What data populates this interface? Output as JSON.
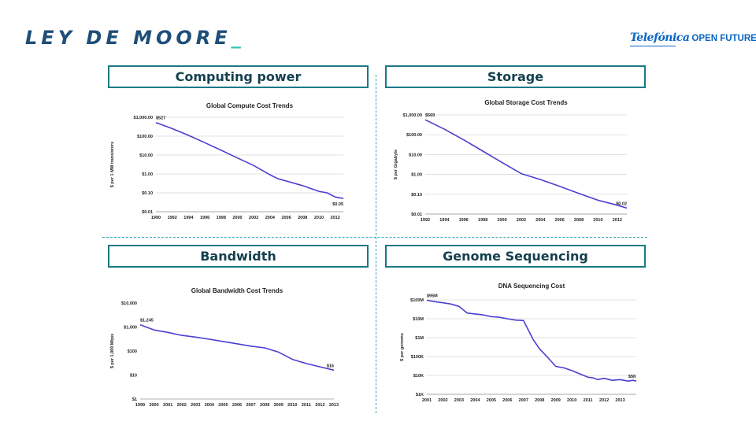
{
  "slide": {
    "title": "LEY DE MOORE",
    "title_cursor": "_",
    "logo_brand": "Telefónica",
    "logo_suffix": "OPEN FUTURE"
  },
  "sections": {
    "computing": "Computing power",
    "storage": "Storage",
    "bandwidth": "Bandwidth",
    "genome": "Genome Sequencing"
  },
  "colors": {
    "line": "#4b3fd0",
    "frame": "#197a85",
    "title": "#1f4e79",
    "accent": "#2ec4b6"
  },
  "chart_data": [
    {
      "id": "compute",
      "type": "line",
      "title": "Global Compute Cost Trends",
      "ylabel": "$ per 1 MM transistors",
      "yscale": "log",
      "xlim": [
        1990,
        2013
      ],
      "ylim": [
        0.01,
        1000
      ],
      "grid": true,
      "xticks": [
        "1990",
        "1992",
        "1994",
        "1996",
        "1998",
        "2000",
        "2002",
        "2004",
        "2006",
        "2008",
        "2010",
        "2012"
      ],
      "yticks": [
        {
          "value": 1000,
          "label": "$1,000.00"
        },
        {
          "value": 100,
          "label": "$100.00"
        },
        {
          "value": 10,
          "label": "$10.00"
        },
        {
          "value": 1,
          "label": "$1.00"
        },
        {
          "value": 0.1,
          "label": "$0.10"
        },
        {
          "value": 0.01,
          "label": "$0.01"
        }
      ],
      "series": [
        {
          "x": [
            1990,
            1992,
            1994,
            1996,
            1998,
            2000,
            2002,
            2004,
            2005,
            2006,
            2008,
            2010,
            2011,
            2012,
            2013
          ],
          "y": [
            527,
            250,
            110,
            45,
            18,
            7,
            2.8,
            0.9,
            0.55,
            0.42,
            0.24,
            0.12,
            0.1,
            0.06,
            0.05
          ]
        }
      ],
      "annotations": [
        {
          "text": "$527",
          "x": 1990,
          "y": 527,
          "pos": "above"
        },
        {
          "text": "$0.05",
          "x": 2013,
          "y": 0.05,
          "pos": "below"
        }
      ]
    },
    {
      "id": "storage",
      "type": "line",
      "title": "Global Storage Cost Trends",
      "ylabel": "$ per Gigabyte",
      "yscale": "log",
      "xlim": [
        1992,
        2013
      ],
      "ylim": [
        0.01,
        1000
      ],
      "grid": true,
      "xticks": [
        "1992",
        "1994",
        "1996",
        "1998",
        "2000",
        "2002",
        "2004",
        "2006",
        "2008",
        "2010",
        "2012"
      ],
      "yticks": [
        {
          "value": 1000,
          "label": "$1,000.00"
        },
        {
          "value": 100,
          "label": "$100.00"
        },
        {
          "value": 10,
          "label": "$10.00"
        },
        {
          "value": 1,
          "label": "$1.00"
        },
        {
          "value": 0.1,
          "label": "$0.10"
        },
        {
          "value": 0.01,
          "label": "$0.01"
        }
      ],
      "series": [
        {
          "x": [
            1992,
            1994,
            1996,
            1998,
            2000,
            2002,
            2004,
            2006,
            2008,
            2010,
            2012,
            2013
          ],
          "y": [
            569,
            190,
            55,
            15,
            4,
            1.1,
            0.55,
            0.25,
            0.11,
            0.05,
            0.028,
            0.02
          ]
        }
      ],
      "annotations": [
        {
          "text": "$569",
          "x": 1992,
          "y": 569,
          "pos": "above"
        },
        {
          "text": "$0.02",
          "x": 2013,
          "y": 0.02,
          "pos": "above"
        }
      ]
    },
    {
      "id": "bandwidth",
      "type": "line",
      "title": "Global Bandwidth Cost Trends",
      "ylabel": "$ per 1,000 Mbps",
      "yscale": "log",
      "xlim": [
        1999,
        2013
      ],
      "ylim": [
        1,
        10000
      ],
      "grid": false,
      "xticks": [
        "1999",
        "2000",
        "2001",
        "2002",
        "2003",
        "2004",
        "2005",
        "2006",
        "2007",
        "2008",
        "2009",
        "2010",
        "2011",
        "2012",
        "2013"
      ],
      "yticks": [
        {
          "value": 10000,
          "label": "$10,000"
        },
        {
          "value": 1000,
          "label": "$1,000"
        },
        {
          "value": 100,
          "label": "$100"
        },
        {
          "value": 10,
          "label": "$10"
        },
        {
          "value": 1,
          "label": "$1"
        }
      ],
      "series": [
        {
          "x": [
            1999,
            2000,
            2001,
            2002,
            2003,
            2004,
            2005,
            2006,
            2007,
            2008,
            2009,
            2010,
            2011,
            2012,
            2013
          ],
          "y": [
            1245,
            750,
            600,
            450,
            380,
            310,
            250,
            200,
            160,
            135,
            90,
            45,
            30,
            22,
            16
          ]
        }
      ],
      "annotations": [
        {
          "text": "$1,245",
          "x": 1999,
          "y": 1245,
          "pos": "above"
        },
        {
          "text": "$16",
          "x": 2013,
          "y": 16,
          "pos": "above"
        }
      ]
    },
    {
      "id": "genome",
      "type": "line",
      "title": "DNA Sequencing Cost",
      "ylabel": "$ per genome",
      "yscale": "log",
      "xlim": [
        2001,
        2014
      ],
      "ylim": [
        1000,
        100000000
      ],
      "grid": true,
      "xticks": [
        "2001",
        "2002",
        "2003",
        "2004",
        "2005",
        "2006",
        "2007",
        "2008",
        "2009",
        "2010",
        "2011",
        "2012",
        "2013"
      ],
      "yticks": [
        {
          "value": 100000000,
          "label": "$100M"
        },
        {
          "value": 10000000,
          "label": "$10M"
        },
        {
          "value": 1000000,
          "label": "$1M"
        },
        {
          "value": 100000,
          "label": "$100K"
        },
        {
          "value": 10000,
          "label": "$10K"
        },
        {
          "value": 1000,
          "label": "$1K"
        }
      ],
      "series": [
        {
          "x": [
            2001,
            2001.5,
            2002,
            2002.5,
            2003,
            2003.5,
            2004,
            2004.5,
            2005,
            2005.5,
            2006,
            2006.5,
            2007,
            2007.3,
            2007.6,
            2008,
            2008.5,
            2009,
            2009.5,
            2010,
            2010.5,
            2011,
            2011.3,
            2011.6,
            2012,
            2012.5,
            2013,
            2013.5,
            2013.8,
            2014
          ],
          "y": [
            95000000,
            80000000,
            70000000,
            60000000,
            45000000,
            20000000,
            18000000,
            16000000,
            13000000,
            12000000,
            10000000,
            8500000,
            8000000,
            2500000,
            800000,
            250000,
            90000,
            30000,
            25000,
            18000,
            12000,
            8000,
            7500,
            6000,
            7000,
            5500,
            6000,
            5000,
            5500,
            5000
          ]
        }
      ],
      "annotations": [
        {
          "text": "$95M",
          "x": 2001,
          "y": 95000000,
          "pos": "above"
        },
        {
          "text": "$5K",
          "x": 2014,
          "y": 5000,
          "pos": "above"
        }
      ]
    }
  ]
}
